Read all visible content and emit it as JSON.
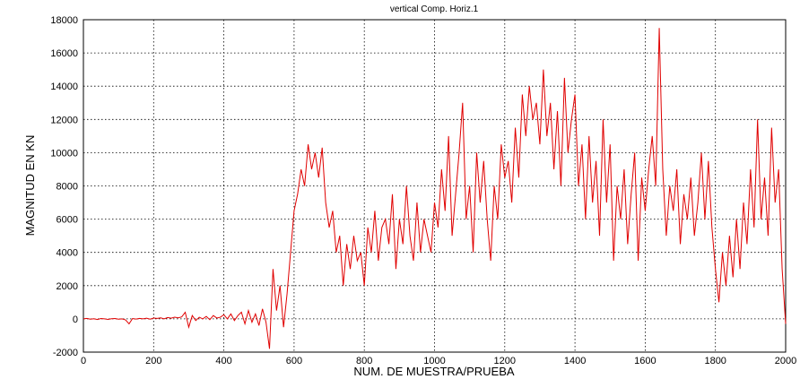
{
  "chart_data": {
    "type": "line",
    "title": "vertical Comp. Horiz.1",
    "x_label": "NUM. DE MUESTRA/PRUEBA",
    "y_label": "MAGNITUD EN KN",
    "xlim": [
      0,
      2000
    ],
    "ylim": [
      -2000,
      18000
    ],
    "xticks": [
      0,
      200,
      400,
      600,
      800,
      1000,
      1200,
      1400,
      1600,
      1800,
      2000
    ],
    "yticks": [
      -2000,
      0,
      2000,
      4000,
      6000,
      8000,
      10000,
      12000,
      14000,
      16000,
      18000
    ],
    "grid": true,
    "x": [
      0,
      10,
      20,
      30,
      40,
      50,
      60,
      70,
      80,
      90,
      100,
      110,
      120,
      130,
      140,
      150,
      160,
      170,
      180,
      190,
      200,
      210,
      220,
      230,
      240,
      250,
      260,
      270,
      280,
      290,
      300,
      310,
      320,
      330,
      340,
      350,
      360,
      370,
      380,
      390,
      400,
      410,
      420,
      430,
      440,
      450,
      460,
      470,
      480,
      490,
      500,
      510,
      520,
      530,
      540,
      550,
      560,
      570,
      580,
      590,
      600,
      610,
      620,
      630,
      640,
      650,
      660,
      670,
      680,
      690,
      700,
      710,
      720,
      730,
      740,
      750,
      760,
      770,
      780,
      790,
      800,
      810,
      820,
      830,
      840,
      850,
      860,
      870,
      880,
      890,
      900,
      910,
      920,
      930,
      940,
      950,
      960,
      970,
      980,
      990,
      1000,
      1010,
      1020,
      1030,
      1040,
      1050,
      1060,
      1070,
      1080,
      1090,
      1100,
      1110,
      1120,
      1130,
      1140,
      1150,
      1160,
      1170,
      1180,
      1190,
      1200,
      1210,
      1220,
      1230,
      1240,
      1250,
      1260,
      1270,
      1280,
      1290,
      1300,
      1310,
      1320,
      1330,
      1340,
      1350,
      1360,
      1370,
      1380,
      1390,
      1400,
      1410,
      1420,
      1430,
      1440,
      1450,
      1460,
      1470,
      1480,
      1490,
      1500,
      1510,
      1520,
      1530,
      1540,
      1550,
      1560,
      1570,
      1580,
      1590,
      1600,
      1610,
      1620,
      1630,
      1640,
      1650,
      1660,
      1670,
      1680,
      1690,
      1700,
      1710,
      1720,
      1730,
      1740,
      1750,
      1760,
      1770,
      1780,
      1790,
      1800,
      1810,
      1820,
      1830,
      1840,
      1850,
      1860,
      1870,
      1880,
      1890,
      1900,
      1910,
      1920,
      1930,
      1940,
      1950,
      1960,
      1970,
      1980,
      1990,
      2000
    ],
    "series": [
      {
        "color": "#e00000",
        "values": [
          0,
          30,
          -20,
          10,
          -40,
          20,
          0,
          -30,
          10,
          20,
          -20,
          0,
          -60,
          -300,
          20,
          -10,
          30,
          0,
          40,
          -20,
          50,
          30,
          60,
          0,
          80,
          40,
          100,
          60,
          120,
          400,
          -500,
          200,
          -100,
          100,
          0,
          150,
          -50,
          200,
          50,
          100,
          250,
          0,
          300,
          -100,
          200,
          400,
          -300,
          500,
          -200,
          300,
          -400,
          600,
          -200,
          -1800,
          3000,
          500,
          2000,
          -500,
          1500,
          4000,
          6500,
          7500,
          9000,
          8000,
          10500,
          9000,
          10000,
          8500,
          10300,
          7000,
          5500,
          6500,
          4000,
          5000,
          2000,
          4500,
          3000,
          5000,
          3500,
          4000,
          2000,
          5500,
          4000,
          6500,
          3500,
          5500,
          6000,
          4500,
          7500,
          3000,
          6000,
          4500,
          8000,
          5000,
          3500,
          7000,
          4000,
          6000,
          5000,
          4000,
          7000,
          5500,
          9000,
          6500,
          11000,
          5000,
          7500,
          10000,
          13000,
          6000,
          8000,
          4000,
          10000,
          7000,
          9500,
          6000,
          3500,
          8000,
          6000,
          10500,
          8500,
          9500,
          7000,
          11500,
          8500,
          13500,
          11000,
          14000,
          12000,
          13000,
          10500,
          15000,
          11000,
          13000,
          9000,
          12500,
          8000,
          14500,
          10000,
          12000,
          13500,
          8000,
          10500,
          6000,
          11000,
          7000,
          9500,
          5000,
          12000,
          7000,
          10500,
          3500,
          8000,
          6000,
          9000,
          4500,
          7500,
          10000,
          3500,
          8500,
          6500,
          9000,
          11000,
          8000,
          17500,
          9000,
          5000,
          8000,
          6500,
          9000,
          4500,
          7500,
          6000,
          8500,
          5000,
          7000,
          10000,
          6000,
          9500,
          5500,
          3000,
          1000,
          4000,
          2000,
          5000,
          2500,
          6000,
          3000,
          7000,
          4500,
          9000,
          5500,
          12000,
          6000,
          8500,
          5000,
          11500,
          7000,
          9000,
          3000,
          -300
        ]
      }
    ]
  }
}
